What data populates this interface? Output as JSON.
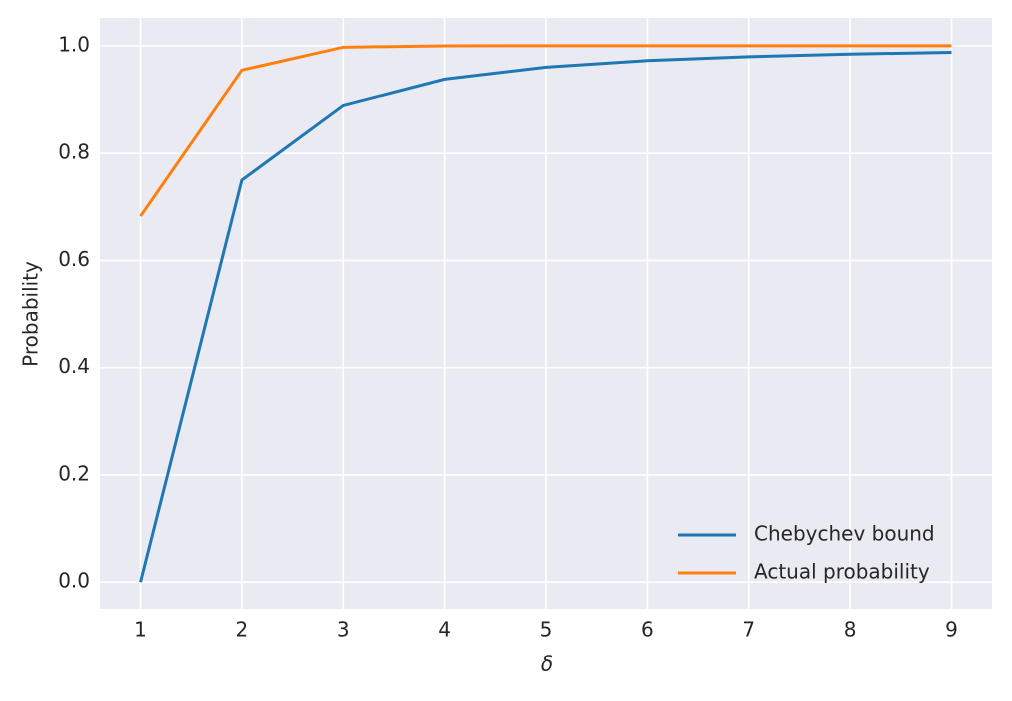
{
  "chart_data": {
    "type": "line",
    "x_label": "δ",
    "y_label": "Probability",
    "x": [
      1,
      2,
      3,
      4,
      5,
      6,
      7,
      8,
      9
    ],
    "series": [
      {
        "name": "Chebychev bound",
        "color": "#1f77b4",
        "values": [
          0,
          0.75,
          0.8889,
          0.9375,
          0.96,
          0.9722,
          0.9796,
          0.9844,
          0.9877
        ]
      },
      {
        "name": "Actual probability",
        "color": "#ff7f0e",
        "values": [
          0.6827,
          0.9545,
          0.9973,
          0.9999,
          1.0,
          1.0,
          1.0,
          1.0,
          1.0
        ]
      }
    ],
    "xlim": [
      0.6,
      9.4
    ],
    "ylim": [
      -0.05,
      1.052
    ],
    "xticks": [
      1,
      2,
      3,
      4,
      5,
      6,
      7,
      8,
      9
    ],
    "yticks": [
      {
        "value": 0,
        "label": "0.0"
      },
      {
        "value": 0.2,
        "label": "0.2"
      },
      {
        "value": 0.4,
        "label": "0.4"
      },
      {
        "value": 0.6,
        "label": "0.6"
      },
      {
        "value": 0.8,
        "label": "0.8"
      },
      {
        "value": 1.0,
        "label": "1.0"
      }
    ],
    "grid": true,
    "legend": "lower right"
  }
}
